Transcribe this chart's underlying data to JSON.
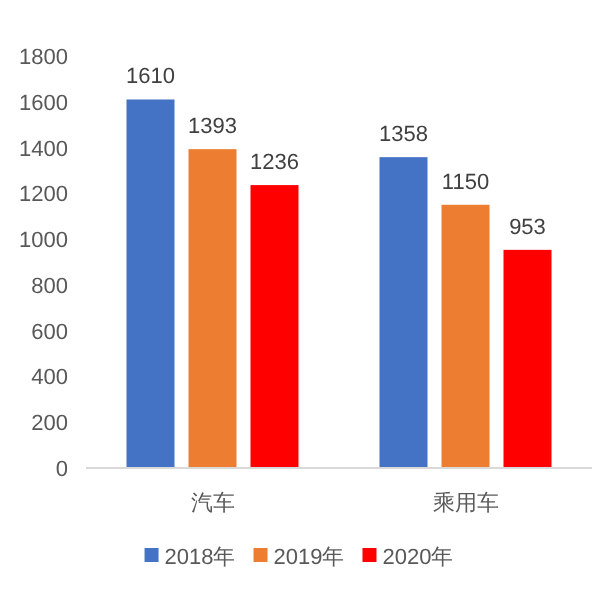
{
  "chart_data": {
    "type": "bar",
    "categories": [
      "汽车",
      "乘用车"
    ],
    "series": [
      {
        "name": "2018年",
        "color": "#4472c4",
        "values": [
          1610,
          1358
        ]
      },
      {
        "name": "2019年",
        "color": "#ed7d31",
        "values": [
          1393,
          1150
        ]
      },
      {
        "name": "2020年",
        "color": "#ff0000",
        "values": [
          1236,
          953
        ]
      }
    ],
    "ylim": [
      0,
      1800
    ],
    "yticks": [
      0,
      200,
      400,
      600,
      800,
      1000,
      1200,
      1400,
      1600,
      1800
    ],
    "data_labels": true,
    "legend": "bottom"
  }
}
